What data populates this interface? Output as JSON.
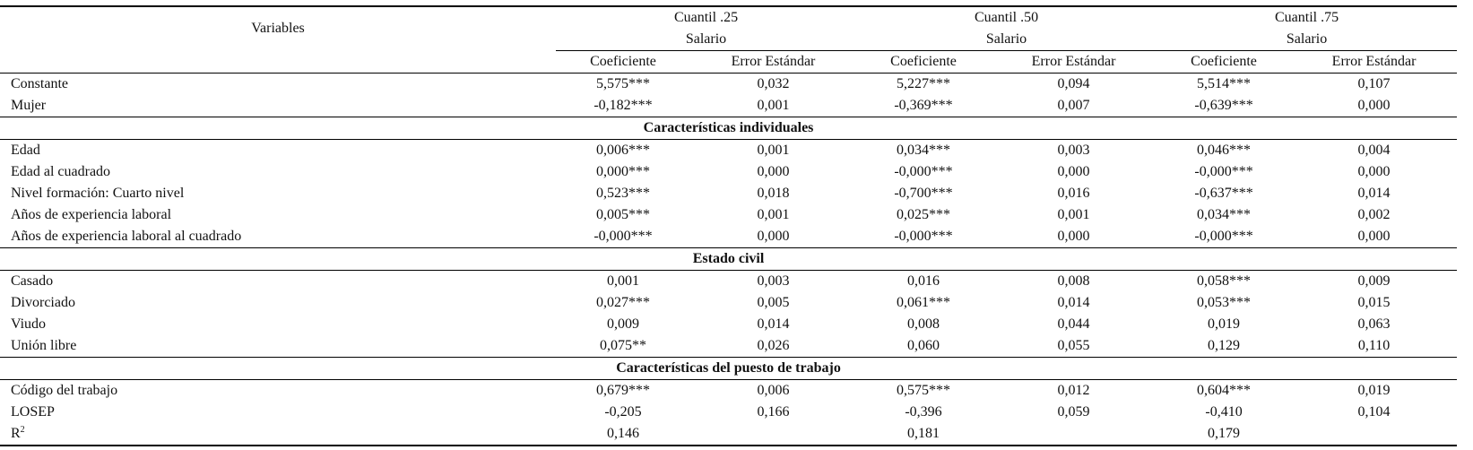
{
  "header": {
    "variables_label": "Variables",
    "groups": [
      {
        "quantile": "Cuantil .25",
        "dep": "Salario"
      },
      {
        "quantile": "Cuantil .50",
        "dep": "Salario"
      },
      {
        "quantile": "Cuantil .75",
        "dep": "Salario"
      }
    ],
    "coef_label": "Coeficiente",
    "se_label": "Error Estándar"
  },
  "rows_top": [
    {
      "label": "Constante",
      "v": [
        "5,575***",
        "0,032",
        "5,227***",
        "0,094",
        "5,514***",
        "0,107"
      ]
    },
    {
      "label": "Mujer",
      "v": [
        "-0,182***",
        "0,001",
        "-0,369***",
        "0,007",
        "-0,639***",
        "0,000"
      ]
    }
  ],
  "section1": {
    "title": "Características individuales",
    "rows": [
      {
        "label": "Edad",
        "v": [
          "0,006***",
          "0,001",
          "0,034***",
          "0,003",
          "0,046***",
          "0,004"
        ]
      },
      {
        "label": "Edad al cuadrado",
        "v": [
          "0,000***",
          "0,000",
          "-0,000***",
          "0,000",
          "-0,000***",
          "0,000"
        ]
      },
      {
        "label": "Nivel formación: Cuarto nivel",
        "v": [
          "0,523***",
          "0,018",
          "-0,700***",
          "0,016",
          "-0,637***",
          "0,014"
        ]
      },
      {
        "label": "Años de experiencia laboral",
        "v": [
          "0,005***",
          "0,001",
          "0,025***",
          "0,001",
          "0,034***",
          "0,002"
        ]
      },
      {
        "label": "Años de experiencia laboral al cuadrado",
        "v": [
          "-0,000***",
          "0,000",
          "-0,000***",
          "0,000",
          "-0,000***",
          "0,000"
        ]
      }
    ]
  },
  "section2": {
    "title": "Estado civil",
    "rows": [
      {
        "label": "Casado",
        "v": [
          "0,001",
          "0,003",
          "0,016",
          "0,008",
          "0,058***",
          "0,009"
        ]
      },
      {
        "label": "Divorciado",
        "v": [
          "0,027***",
          "0,005",
          "0,061***",
          "0,014",
          "0,053***",
          "0,015"
        ]
      },
      {
        "label": "Viudo",
        "v": [
          "0,009",
          "0,014",
          "0,008",
          "0,044",
          "0,019",
          "0,063"
        ]
      },
      {
        "label": "Unión libre",
        "v": [
          "0,075**",
          "0,026",
          "0,060",
          "0,055",
          "0,129",
          "0,110"
        ]
      }
    ]
  },
  "section3": {
    "title": "Características del puesto de trabajo",
    "rows": [
      {
        "label": "Código del trabajo",
        "v": [
          "0,679***",
          "0,006",
          "0,575***",
          "0,012",
          "0,604***",
          "0,019"
        ]
      },
      {
        "label": "LOSEP",
        "v": [
          "-0,205",
          "0,166",
          "-0,396",
          "0,059",
          "-0,410",
          "0,104"
        ]
      }
    ]
  },
  "r2": {
    "label": "R",
    "sup": "2",
    "v": [
      "0,146",
      "",
      "0,181",
      "",
      "0,179",
      ""
    ]
  }
}
